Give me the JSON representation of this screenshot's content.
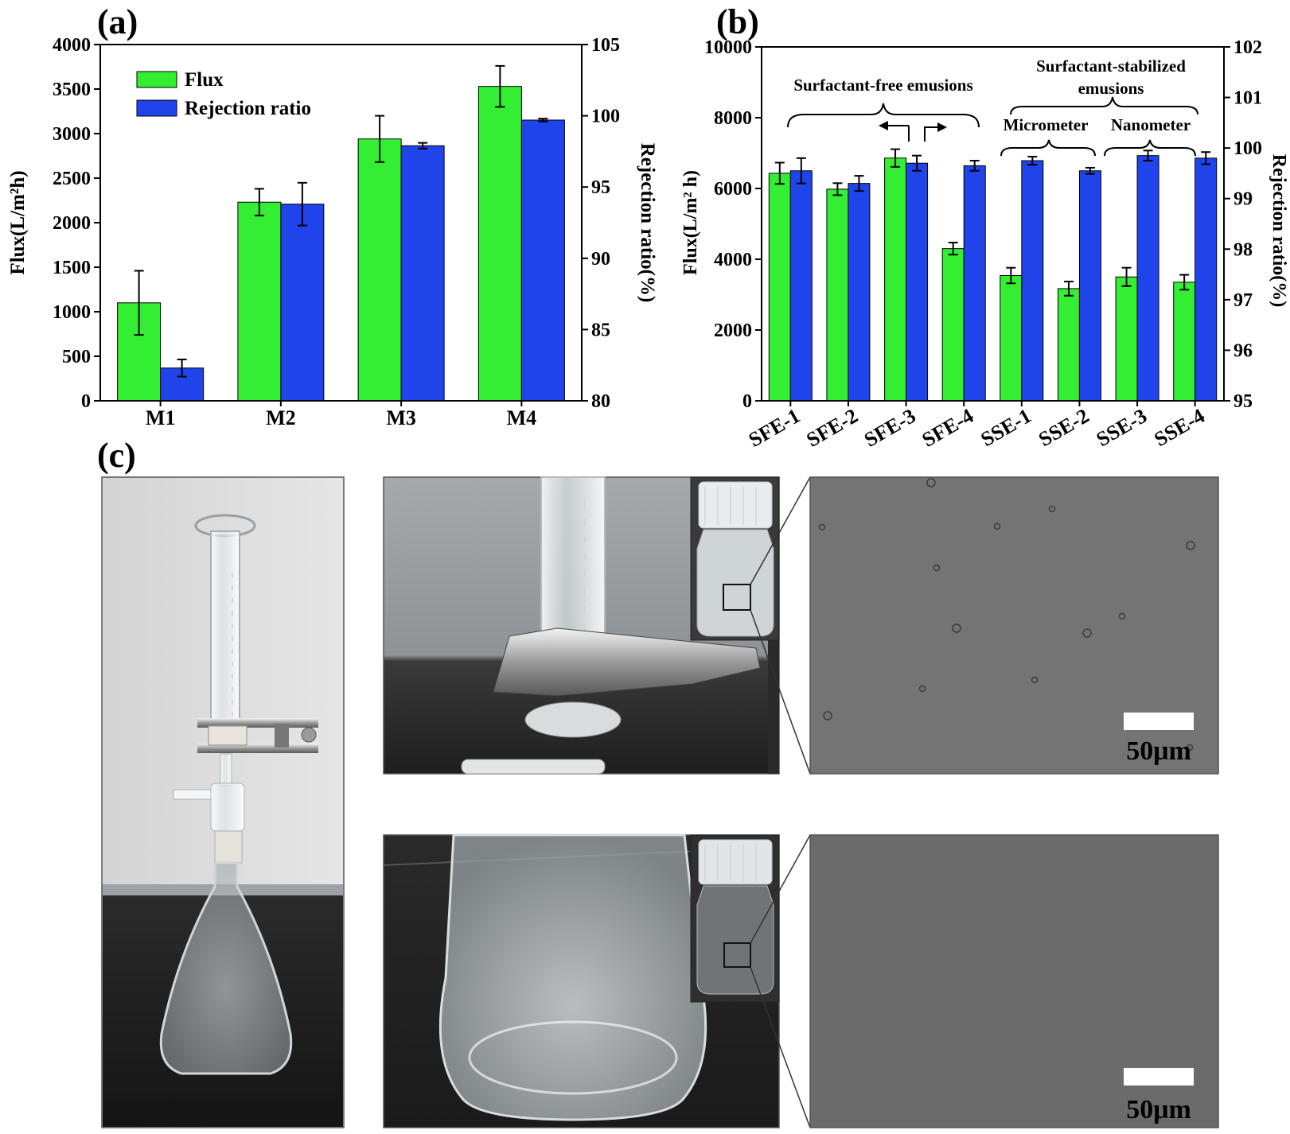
{
  "panel_labels": {
    "a": "(a)",
    "b": "(b)",
    "c": "(c)"
  },
  "chart_data": [
    {
      "id": "a",
      "type": "bar",
      "categories": [
        "M1",
        "M2",
        "M3",
        "M4"
      ],
      "series": [
        {
          "name": "Flux",
          "axis": "left",
          "color": "#33ee33",
          "values": [
            1100,
            2230,
            2940,
            3530
          ],
          "errors": [
            360,
            150,
            260,
            230
          ]
        },
        {
          "name": "Rejection ratio",
          "axis": "right",
          "color": "#1f45ea",
          "values": [
            82.3,
            93.8,
            97.9,
            99.7
          ],
          "errors": [
            0.6,
            1.5,
            0.2,
            0.1
          ]
        }
      ],
      "ylabel": "Flux(L/m²h)",
      "y2label": "Rejection ratio(%)",
      "ylim": [
        0,
        4000
      ],
      "y2lim": [
        80,
        105
      ],
      "yticks": [
        0,
        500,
        1000,
        1500,
        2000,
        2500,
        3000,
        3500,
        4000
      ],
      "y2ticks": [
        80,
        85,
        90,
        95,
        100,
        105
      ],
      "legend_position": "top-left"
    },
    {
      "id": "b",
      "type": "bar",
      "categories": [
        "SFE-1",
        "SFE-2",
        "SFE-3",
        "SFE-4",
        "SSE-1",
        "SSE-2",
        "SSE-3",
        "SSE-4"
      ],
      "series": [
        {
          "axis": "left",
          "color": "#33ee33",
          "values": [
            6430,
            5980,
            6860,
            4300,
            3540,
            3170,
            3500,
            3350
          ],
          "errors": [
            300,
            170,
            250,
            170,
            220,
            200,
            260,
            210
          ]
        },
        {
          "axis": "right",
          "color": "#1f45ea",
          "values": [
            99.55,
            99.3,
            99.7,
            99.65,
            99.75,
            99.55,
            99.85,
            99.8
          ],
          "errors": [
            0.25,
            0.15,
            0.15,
            0.1,
            0.08,
            0.06,
            0.1,
            0.12
          ]
        }
      ],
      "ylabel": "Flux(L/m² h)",
      "y2label": "Rejection ratio(%)",
      "ylim": [
        0,
        10000
      ],
      "y2lim": [
        95,
        102
      ],
      "yticks": [
        0,
        2000,
        4000,
        6000,
        8000,
        10000
      ],
      "y2ticks": [
        95,
        96,
        97,
        98,
        99,
        100,
        101,
        102
      ],
      "annotations": {
        "surfactant_free": "Surfactant-free emusions",
        "surfactant_stabilized_1": "Surfactant-stabilized",
        "surfactant_stabilized_2": "emusions",
        "micrometer": "Micrometer",
        "nanometer": "Nanometer"
      }
    }
  ],
  "photos": {
    "scale_bar_top": "50μm",
    "scale_bar_bottom": "50μm"
  }
}
